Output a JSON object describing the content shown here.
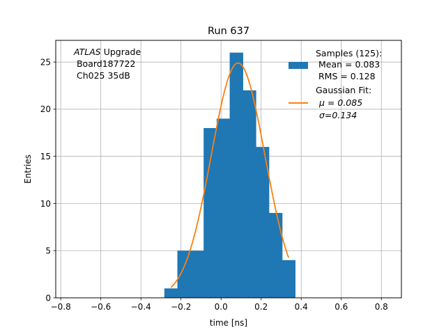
{
  "chart_data": {
    "type": "bar",
    "title": "Run 637",
    "xlabel": "time [ns]",
    "ylabel": "Entries",
    "xlim": [
      -0.825,
      0.9
    ],
    "ylim": [
      0,
      27.3
    ],
    "xticks": [
      -0.8,
      -0.6,
      -0.4,
      -0.2,
      0.0,
      0.2,
      0.4,
      0.6,
      0.8
    ],
    "xtick_labels": [
      "−0.8",
      "−0.6",
      "−0.4",
      "−0.2",
      "0.0",
      "0.2",
      "0.4",
      "0.6",
      "0.8"
    ],
    "yticks": [
      0,
      5,
      10,
      15,
      20,
      25
    ],
    "ytick_labels": [
      "0",
      "5",
      "10",
      "15",
      "20",
      "25"
    ],
    "grid": true,
    "legend_position": "top-right",
    "colors": {
      "histogram": "#1f77b4",
      "fit": "#ff7f0e"
    },
    "histogram": {
      "bin_edges": [
        -0.283,
        -0.218,
        -0.152,
        -0.087,
        -0.022,
        0.043,
        0.109,
        0.174,
        0.239,
        0.305,
        0.37
      ],
      "counts": [
        1,
        5,
        5,
        18,
        19,
        26,
        22,
        16,
        9,
        4
      ]
    },
    "gaussian_fit": {
      "mu": 0.085,
      "sigma": 0.134,
      "peak": 24.9,
      "x_range": [
        -0.25,
        0.337
      ]
    },
    "annotation": {
      "line1_italic": "ATLAS",
      "line1_rest": " Upgrade",
      "line2": " Board187722",
      "line3": " Ch025 35dB"
    },
    "legend": {
      "samples_title": "Samples (125):",
      "samples_mean": " Mean = 0.083",
      "samples_rms": " RMS = 0.128",
      "fit_title": "Gaussian Fit:",
      "fit_mu": "μ = 0.085",
      "fit_sigma": "σ=0.134"
    }
  }
}
